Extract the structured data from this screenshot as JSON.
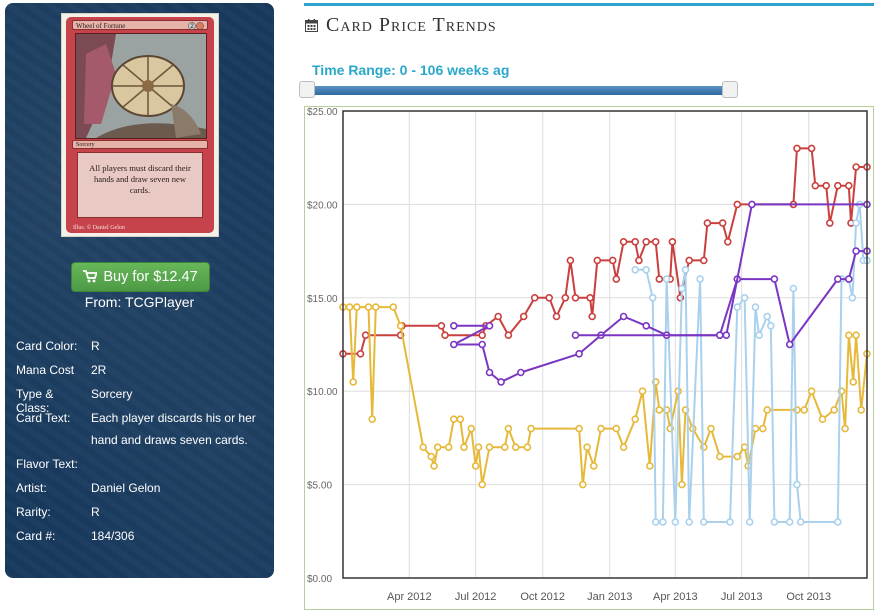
{
  "card_image": {
    "name": "Wheel of Fortune",
    "mana": "2R",
    "type_line": "Sorcery",
    "rules_text": "All players must discard their hands and draw seven new cards.",
    "illus": "Illus. © Daniel Gelon"
  },
  "buy": {
    "label": "Buy for $12.47",
    "source": "From: TCGPlayer",
    "icon": "cart-icon"
  },
  "details": [
    {
      "label": "Card Color:",
      "value": "R"
    },
    {
      "label": "Mana Cost",
      "value": "2R"
    },
    {
      "label": "Type & Class:",
      "value": "Sorcery"
    },
    {
      "label": "Card Text:",
      "value": "Each player discards his or her hand and draws seven cards."
    },
    {
      "label": "Flavor Text:",
      "value": ""
    },
    {
      "label": "Artist:",
      "value": "Daniel Gelon"
    },
    {
      "label": "Rarity:",
      "value": "R"
    },
    {
      "label": "Card #:",
      "value": "184/306"
    }
  ],
  "section": {
    "title": "Card Price Trends",
    "icon": "calendar-icon"
  },
  "range": {
    "label": "Time Range: 0 - 106 weeks ag",
    "min": 0,
    "max": 106
  },
  "colors": {
    "accent": "#2ea2cc",
    "red": "#c9403e",
    "gold": "#e6b93a",
    "lightblue": "#a9d1ee",
    "purple": "#7a36c2",
    "panel": "#183a5e",
    "green": "#5cb85c"
  },
  "chart_data": {
    "type": "line",
    "title": "",
    "xlabel": "",
    "ylabel": "",
    "ylim": [
      0,
      25
    ],
    "y_ticks": [
      "$0.00",
      "$5.00",
      "$10.00",
      "$15.00",
      "$20.00",
      "$25.00"
    ],
    "x_ticks": [
      "Apr 2012",
      "Jul 2012",
      "Oct 2012",
      "Jan 2013",
      "Apr 2013",
      "Jul 2013",
      "Oct 2013"
    ],
    "x_range": [
      "2012-01-01",
      "2013-12-20"
    ],
    "grid": true,
    "series": [
      {
        "color": "#c9403e",
        "points": [
          [
            "2012-01-01",
            12.0
          ],
          [
            "2012-01-25",
            12.0
          ],
          [
            "2012-02-01",
            13.0
          ],
          [
            "2012-03-20",
            13.0
          ],
          [
            "2012-03-22",
            13.5
          ],
          [
            "2012-05-15",
            13.5
          ],
          [
            "2012-05-20",
            13.0
          ],
          [
            "2012-07-10",
            13.0
          ],
          [
            "2012-07-15",
            13.5
          ],
          [
            "2012-08-01",
            14.0
          ],
          [
            "2012-08-15",
            13.0
          ],
          [
            "2012-09-05",
            14.0
          ],
          [
            "2012-09-20",
            15.0
          ],
          [
            "2012-10-10",
            15.0
          ],
          [
            "2012-10-20",
            14.0
          ],
          [
            "2012-11-01",
            15.0
          ],
          [
            "2012-11-08",
            17.0
          ],
          [
            "2012-11-15",
            15.0
          ],
          [
            "2012-12-05",
            15.0
          ],
          [
            "2012-12-08",
            14.0
          ],
          [
            "2012-12-15",
            17.0
          ],
          [
            "2013-01-05",
            17.0
          ],
          [
            "2013-01-10",
            16.0
          ],
          [
            "2013-01-20",
            18.0
          ],
          [
            "2013-02-05",
            18.0
          ],
          [
            "2013-02-10",
            17.0
          ],
          [
            "2013-02-20",
            18.0
          ],
          [
            "2013-03-05",
            18.0
          ],
          [
            "2013-03-10",
            16.0
          ],
          [
            "2013-03-25",
            16.0
          ],
          [
            "2013-03-28",
            18.0
          ],
          [
            "2013-04-08",
            15.0
          ],
          [
            "2013-04-20",
            17.0
          ],
          [
            "2013-05-10",
            17.0
          ],
          [
            "2013-05-15",
            19.0
          ],
          [
            "2013-06-05",
            19.0
          ],
          [
            "2013-06-12",
            18.0
          ],
          [
            "2013-06-25",
            20.0
          ],
          [
            "2013-09-10",
            20.0
          ],
          [
            "2013-09-15",
            23.0
          ],
          [
            "2013-10-05",
            23.0
          ],
          [
            "2013-10-10",
            21.0
          ],
          [
            "2013-10-25",
            21.0
          ],
          [
            "2013-10-30",
            19.0
          ],
          [
            "2013-11-10",
            21.0
          ],
          [
            "2013-11-25",
            21.0
          ],
          [
            "2013-11-28",
            19.0
          ],
          [
            "2013-12-05",
            22.0
          ],
          [
            "2013-12-20",
            22.0
          ]
        ]
      },
      {
        "color": "#e6b93a",
        "points": [
          [
            "2012-01-01",
            14.5
          ],
          [
            "2012-01-10",
            14.5
          ],
          [
            "2012-01-15",
            10.5
          ],
          [
            "2012-01-20",
            14.5
          ],
          [
            "2012-02-05",
            14.5
          ],
          [
            "2012-02-10",
            8.5
          ],
          [
            "2012-02-15",
            14.5
          ],
          [
            "2012-03-10",
            14.5
          ],
          [
            "2012-03-20",
            13.5
          ],
          [
            "2012-04-20",
            7.0
          ],
          [
            "2012-05-01",
            6.5
          ],
          [
            "2012-05-05",
            6.0
          ],
          [
            "2012-05-10",
            7.0
          ],
          [
            "2012-05-25",
            7.0
          ],
          [
            "2012-06-01",
            8.5
          ],
          [
            "2012-06-10",
            8.5
          ],
          [
            "2012-06-15",
            7.0
          ],
          [
            "2012-06-25",
            8.0
          ],
          [
            "2012-07-01",
            6.0
          ],
          [
            "2012-07-05",
            7.0
          ],
          [
            "2012-07-10",
            5.0
          ],
          [
            "2012-07-20",
            7.0
          ],
          [
            "2012-08-10",
            7.0
          ],
          [
            "2012-08-15",
            8.0
          ],
          [
            "2012-08-25",
            7.0
          ],
          [
            "2012-09-10",
            7.0
          ],
          [
            "2012-09-15",
            8.0
          ],
          [
            "2012-11-20",
            8.0
          ],
          [
            "2012-11-25",
            5.0
          ],
          [
            "2012-12-01",
            7.0
          ],
          [
            "2012-12-10",
            6.0
          ],
          [
            "2012-12-20",
            8.0
          ],
          [
            "2013-01-10",
            8.0
          ],
          [
            "2013-01-20",
            7.0
          ],
          [
            "2013-02-05",
            8.5
          ],
          [
            "2013-02-15",
            10.0
          ],
          [
            "2013-02-25",
            6.0
          ],
          [
            "2013-03-05",
            10.5
          ],
          [
            "2013-03-10",
            9.0
          ],
          [
            "2013-03-20",
            9.0
          ],
          [
            "2013-03-25",
            8.0
          ],
          [
            "2013-04-05",
            10.0
          ],
          [
            "2013-04-10",
            5.0
          ],
          [
            "2013-04-15",
            9.0
          ],
          [
            "2013-04-25",
            8.0
          ],
          [
            "2013-05-10",
            7.0
          ],
          [
            "2013-05-20",
            8.0
          ],
          [
            "2013-06-01",
            6.5
          ],
          [
            "2013-06-25",
            6.5
          ],
          [
            "2013-07-05",
            7.0
          ],
          [
            "2013-07-10",
            6.0
          ],
          [
            "2013-07-20",
            8.0
          ],
          [
            "2013-07-30",
            8.0
          ],
          [
            "2013-08-05",
            9.0
          ],
          [
            "2013-09-15",
            9.0
          ],
          [
            "2013-09-25",
            9.0
          ],
          [
            "2013-10-05",
            10.0
          ],
          [
            "2013-10-20",
            8.5
          ],
          [
            "2013-11-05",
            9.0
          ],
          [
            "2013-11-15",
            10.0
          ],
          [
            "2013-11-20",
            8.0
          ],
          [
            "2013-11-25",
            13.0
          ],
          [
            "2013-12-01",
            10.5
          ],
          [
            "2013-12-05",
            13.0
          ],
          [
            "2013-12-12",
            9.0
          ],
          [
            "2013-12-20",
            12.0
          ]
        ]
      },
      {
        "color": "#a9d1ee",
        "points": [
          [
            "2013-02-05",
            16.5
          ],
          [
            "2013-02-20",
            16.5
          ],
          [
            "2013-03-01",
            15.0
          ],
          [
            "2013-03-05",
            3.0
          ],
          [
            "2013-03-15",
            3.0
          ],
          [
            "2013-03-20",
            16.0
          ],
          [
            "2013-04-01",
            3.0
          ],
          [
            "2013-04-10",
            15.5
          ],
          [
            "2013-04-15",
            16.5
          ],
          [
            "2013-04-20",
            3.0
          ],
          [
            "2013-05-05",
            16.0
          ],
          [
            "2013-05-10",
            3.0
          ],
          [
            "2013-06-15",
            3.0
          ],
          [
            "2013-06-25",
            14.5
          ],
          [
            "2013-07-05",
            15.0
          ],
          [
            "2013-07-12",
            3.0
          ],
          [
            "2013-07-20",
            14.5
          ],
          [
            "2013-07-25",
            13.0
          ],
          [
            "2013-08-05",
            14.0
          ],
          [
            "2013-08-10",
            13.5
          ],
          [
            "2013-08-15",
            3.0
          ],
          [
            "2013-09-05",
            3.0
          ],
          [
            "2013-09-10",
            15.5
          ],
          [
            "2013-09-15",
            5.0
          ],
          [
            "2013-09-20",
            3.0
          ],
          [
            "2013-11-10",
            3.0
          ],
          [
            "2013-11-15",
            16.0
          ],
          [
            "2013-11-25",
            16.0
          ],
          [
            "2013-11-30",
            15.0
          ],
          [
            "2013-12-05",
            19.0
          ],
          [
            "2013-12-10",
            20.0
          ],
          [
            "2013-12-15",
            17.0
          ],
          [
            "2013-12-20",
            17.0
          ]
        ]
      },
      {
        "color": "#7a36c2",
        "points": [
          [
            "2012-06-01",
            13.5
          ],
          [
            "2012-07-20",
            13.5
          ],
          [
            "2012-06-01",
            12.5
          ],
          [
            "2012-07-10",
            12.5
          ],
          [
            "2012-07-20",
            11.0
          ],
          [
            "2012-08-05",
            10.5
          ],
          [
            "2012-09-01",
            11.0
          ],
          [
            "2012-11-20",
            12.0
          ],
          [
            "2012-12-20",
            13.0
          ],
          [
            "2013-01-20",
            14.0
          ],
          [
            "2013-02-20",
            13.5
          ],
          [
            "2013-03-20",
            13.0
          ],
          [
            "2013-06-01",
            13.0
          ],
          [
            "2013-06-25",
            16.0
          ],
          [
            "2013-08-15",
            16.0
          ],
          [
            "2013-09-05",
            12.5
          ],
          [
            "2013-11-10",
            16.0
          ],
          [
            "2013-11-25",
            16.0
          ],
          [
            "2013-12-05",
            17.5
          ],
          [
            "2013-12-20",
            17.5
          ]
        ]
      },
      {
        "color": "#7a36c2",
        "points": [
          [
            "2012-11-15",
            13.0
          ],
          [
            "2013-06-01",
            13.0
          ],
          [
            "2013-06-10",
            13.0
          ],
          [
            "2013-07-15",
            20.0
          ],
          [
            "2013-12-20",
            20.0
          ]
        ]
      }
    ]
  }
}
